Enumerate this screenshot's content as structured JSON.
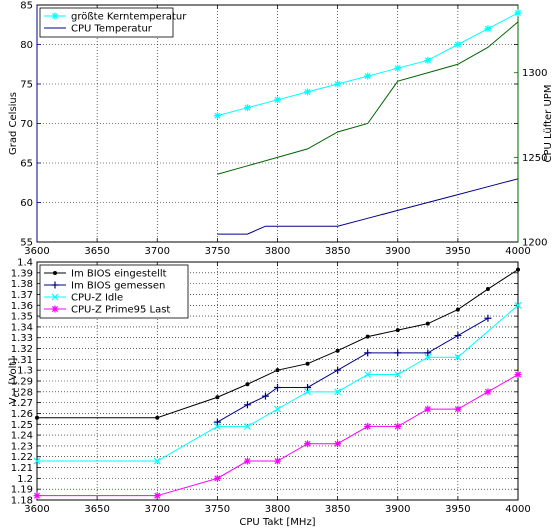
{
  "chart_data": [
    {
      "type": "line",
      "title": "",
      "xlabel": "",
      "ylabel": "Grad Celsius",
      "ylabel_right": "CPU Lüfter UPM",
      "xlim": [
        3600,
        4000
      ],
      "ylim": [
        55,
        85
      ],
      "ylim_right": [
        1200,
        1340
      ],
      "x_ticks": [
        3600,
        3650,
        3700,
        3750,
        3800,
        3850,
        3900,
        3950,
        4000
      ],
      "y_ticks": [
        55,
        60,
        65,
        70,
        75,
        80,
        85
      ],
      "y_ticks_right": [
        1200,
        1250,
        1300
      ],
      "grid": true,
      "legend_position": "top-left",
      "series": [
        {
          "name": "größte Kerntemperatur",
          "color": "#00ffff",
          "marker": "star",
          "axis": "left",
          "x": [
            3750,
            3775,
            3800,
            3825,
            3850,
            3875,
            3900,
            3925,
            3950,
            3975,
            4000
          ],
          "values": [
            71,
            72,
            73,
            74,
            75,
            76,
            77,
            78,
            80,
            82,
            84
          ]
        },
        {
          "name": "CPU Temperatur",
          "color": "#00008b",
          "marker": "none",
          "axis": "left",
          "x": [
            3750,
            3775,
            3790,
            3800,
            3825,
            3850,
            3875,
            3900,
            3925,
            3950,
            3975,
            4000
          ],
          "values": [
            56,
            56,
            57,
            57,
            57,
            57,
            58,
            59,
            60,
            61,
            62,
            63
          ]
        },
        {
          "name": "",
          "color": "#006400",
          "marker": "none",
          "axis": "right",
          "x": [
            3750,
            3775,
            3800,
            3825,
            3850,
            3875,
            3900,
            3925,
            3950,
            3975,
            4000
          ],
          "values": [
            1240,
            1245,
            1250,
            1255,
            1265,
            1270,
            1295,
            1300,
            1305,
            1315,
            1330
          ]
        }
      ]
    },
    {
      "type": "line",
      "title": "",
      "xlabel": "CPU Takt [MHz]",
      "ylabel": "V",
      "ylabel_sub": "CC",
      "ylabel_suffix": " [Volt]",
      "xlim": [
        3600,
        4000
      ],
      "ylim": [
        1.18,
        1.4
      ],
      "x_ticks": [
        3600,
        3650,
        3700,
        3750,
        3800,
        3850,
        3900,
        3950,
        4000
      ],
      "y_ticks": [
        "1.18",
        "1.19",
        "1.2",
        "1.21",
        "1.22",
        "1.23",
        "1.24",
        "1.25",
        "1.26",
        "1.27",
        "1.28",
        "1.29",
        "1.3",
        "1.31",
        "1.32",
        "1.33",
        "1.34",
        "1.35",
        "1.36",
        "1.37",
        "1.38",
        "1.39",
        "1.4"
      ],
      "grid": true,
      "legend_position": "top-left",
      "series": [
        {
          "name": "Im BIOS eingestellt",
          "color": "#000000",
          "marker": "dot",
          "x": [
            3600,
            3700,
            3750,
            3775,
            3800,
            3825,
            3850,
            3875,
            3900,
            3925,
            3950,
            3975,
            4000
          ],
          "values": [
            1.256,
            1.256,
            1.275,
            1.287,
            1.3,
            1.306,
            1.318,
            1.331,
            1.337,
            1.343,
            1.356,
            1.375,
            1.393
          ]
        },
        {
          "name": "Im BIOS gemessen",
          "color": "#00008b",
          "marker": "plus",
          "x": [
            3750,
            3775,
            3790,
            3800,
            3825,
            3850,
            3875,
            3900,
            3925,
            3950,
            3975
          ],
          "values": [
            1.252,
            1.268,
            1.276,
            1.284,
            1.284,
            1.3,
            1.316,
            1.316,
            1.316,
            1.332,
            1.348
          ]
        },
        {
          "name": "CPU-Z Idle",
          "color": "#00ffff",
          "marker": "x",
          "x": [
            3600,
            3700,
            3750,
            3775,
            3800,
            3825,
            3850,
            3875,
            3900,
            3925,
            3950,
            4000
          ],
          "values": [
            1.216,
            1.216,
            1.248,
            1.248,
            1.264,
            1.28,
            1.28,
            1.296,
            1.296,
            1.312,
            1.312,
            1.36
          ]
        },
        {
          "name": "CPU-Z Prime95 Last",
          "color": "#ff00ff",
          "marker": "star",
          "x": [
            3600,
            3700,
            3750,
            3775,
            3800,
            3825,
            3850,
            3875,
            3900,
            3925,
            3950,
            3975,
            4000
          ],
          "values": [
            1.184,
            1.184,
            1.2,
            1.216,
            1.216,
            1.232,
            1.232,
            1.248,
            1.248,
            1.264,
            1.264,
            1.28,
            1.296
          ]
        }
      ]
    }
  ]
}
